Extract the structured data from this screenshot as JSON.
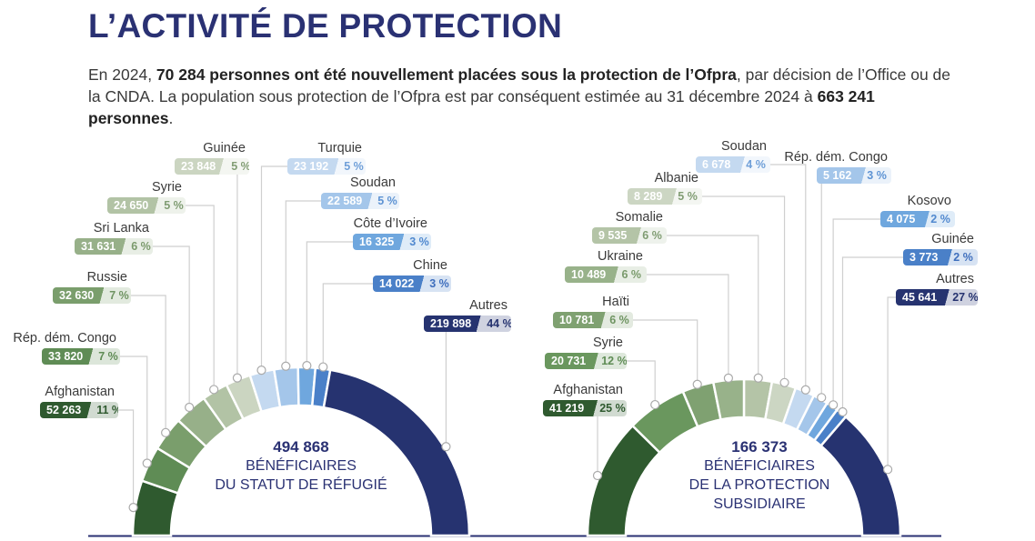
{
  "title": "L’ACTIVITÉ DE PROTECTION",
  "intro": {
    "p1": "En 2024, ",
    "b1": "70 284 personnes ont été nouvellement placées sous la protection de l’Ofpra",
    "p2": ", par décision de l’Office ou de la CNDA. La population sous protection de l’Ofpra est par conséquent estimée au 31 décembre 2024 à ",
    "b2": "663 241 personnes",
    "p3": "."
  },
  "chart_data": [
    {
      "type": "pie",
      "variant": "semi-donut",
      "total": "494 868",
      "center_lines": [
        "BÉNÉFICIAIRES",
        "DU STATUT DE RÉFUGIÉ"
      ],
      "slices": [
        {
          "name": "Afghanistan",
          "value": 52263,
          "value_label": "52 263",
          "pct": "11 %",
          "color": "#2f5a2f",
          "accent": "#2f5a2f"
        },
        {
          "name": "Rép. dém. Congo",
          "value": 33820,
          "value_label": "33 820",
          "pct": "7 %",
          "color": "#5f8c55",
          "accent": "#5f8c55"
        },
        {
          "name": "Russie",
          "value": 32630,
          "value_label": "32 630",
          "pct": "7 %",
          "color": "#7a9e6c",
          "accent": "#6f9462"
        },
        {
          "name": "Sri Lanka",
          "value": 31631,
          "value_label": "31 631",
          "pct": "6 %",
          "color": "#97b089",
          "accent": "#7a9a6c"
        },
        {
          "name": "Syrie",
          "value": 24650,
          "value_label": "24 650",
          "pct": "5 %",
          "color": "#b2c3a5",
          "accent": "#7f9c72"
        },
        {
          "name": "Guinée",
          "value": 23848,
          "value_label": "23 848",
          "pct": "5 %",
          "color": "#cbd5c1",
          "accent": "#829d74"
        },
        {
          "name": "Turquie",
          "value": 23192,
          "value_label": "23 192",
          "pct": "5 %",
          "color": "#c4d9f0",
          "accent": "#6f9fd8"
        },
        {
          "name": "Soudan",
          "value": 22589,
          "value_label": "22 589",
          "pct": "5 %",
          "color": "#a4c6ea",
          "accent": "#5e93d3"
        },
        {
          "name": "Côte d’Ivoire",
          "value": 16325,
          "value_label": "16 325",
          "pct": "3 %",
          "color": "#6fa7de",
          "accent": "#5189cf"
        },
        {
          "name": "Chine",
          "value": 14022,
          "value_label": "14 022",
          "pct": "3 %",
          "color": "#4a80c8",
          "accent": "#3f6fbd"
        },
        {
          "name": "Autres",
          "value": 219898,
          "value_label": "219 898",
          "pct": "44 %",
          "color": "#263370",
          "accent": "#263370"
        }
      ]
    },
    {
      "type": "pie",
      "variant": "semi-donut",
      "total": "166 373",
      "center_lines": [
        "BÉNÉFICIAIRES",
        "DE LA PROTECTION",
        "SUBSIDIAIRE"
      ],
      "slices": [
        {
          "name": "Afghanistan",
          "value": 41219,
          "value_label": "41 219",
          "pct": "25 %",
          "color": "#2f5a2f",
          "accent": "#2f5a2f"
        },
        {
          "name": "Syrie",
          "value": 20731,
          "value_label": "20 731",
          "pct": "12 %",
          "color": "#6a975e",
          "accent": "#5f8c55"
        },
        {
          "name": "Haïti",
          "value": 10781,
          "value_label": "10 781",
          "pct": "6 %",
          "color": "#7fa171",
          "accent": "#6f9462"
        },
        {
          "name": "Ukraine",
          "value": 10489,
          "value_label": "10 489",
          "pct": "6 %",
          "color": "#98b28a",
          "accent": "#7a9a6c"
        },
        {
          "name": "Somalie",
          "value": 9535,
          "value_label": "9 535",
          "pct": "6 %",
          "color": "#b4c4a7",
          "accent": "#7f9c72"
        },
        {
          "name": "Albanie",
          "value": 8289,
          "value_label": "8 289",
          "pct": "5 %",
          "color": "#ccd6c3",
          "accent": "#829d74"
        },
        {
          "name": "Soudan",
          "value": 6678,
          "value_label": "6 678",
          "pct": "4 %",
          "color": "#c4d9f0",
          "accent": "#6f9fd8"
        },
        {
          "name": "Rép. dém. Congo",
          "value": 5162,
          "value_label": "5 162",
          "pct": "3 %",
          "color": "#a4c6ea",
          "accent": "#5e93d3"
        },
        {
          "name": "Kosovo",
          "value": 4075,
          "value_label": "4 075",
          "pct": "2 %",
          "color": "#6fa7de",
          "accent": "#5189cf"
        },
        {
          "name": "Guinée",
          "value": 3773,
          "value_label": "3 773",
          "pct": "2 %",
          "color": "#4a80c8",
          "accent": "#3f6fbd"
        },
        {
          "name": "Autres",
          "value": 45641,
          "value_label": "45 641",
          "pct": "27 %",
          "color": "#263370",
          "accent": "#263370"
        }
      ]
    }
  ]
}
